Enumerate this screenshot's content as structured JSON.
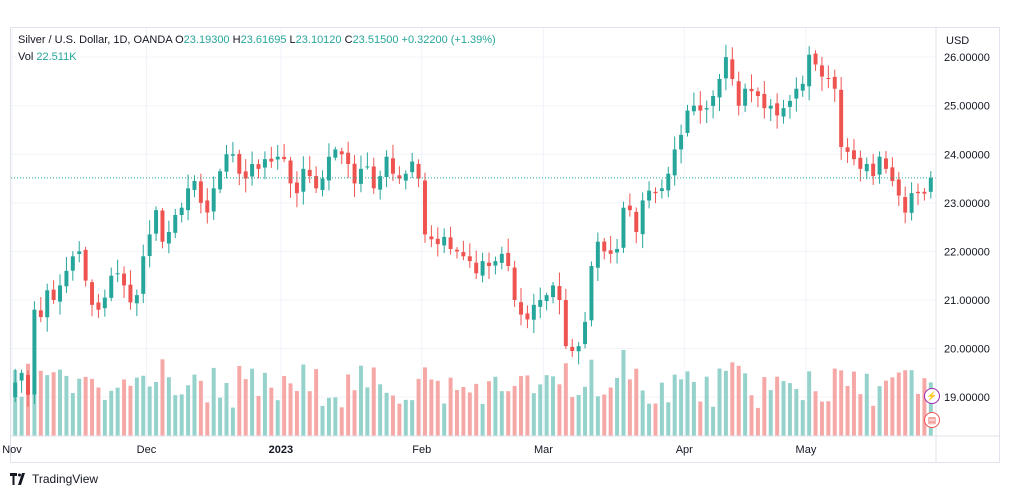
{
  "legend": {
    "symbol": "Silver / U.S. Dollar, 1D, OANDA",
    "o_label": "O",
    "o": "23.19300",
    "h_label": "H",
    "h": "23.61695",
    "l_label": "L",
    "l": "23.10120",
    "c_label": "C",
    "c": "23.51500",
    "change": "+0.32200 (+1.39%)",
    "vol_label": "Vol",
    "vol": "22.511K"
  },
  "footer": {
    "brand": "TradingView"
  },
  "colors": {
    "up": "#26a69a",
    "down": "#ef5350",
    "vol_up": "#94d2cb",
    "vol_down": "#f6a8a6",
    "grid": "#f0f3fa",
    "last_line": "#26a69a"
  },
  "chart_data": {
    "type": "candlestick",
    "currency": "USD",
    "ylim": [
      18.2,
      26.6
    ],
    "y_ticks": [
      "26.00000",
      "25.00000",
      "24.00000",
      "23.00000",
      "22.00000",
      "21.00000",
      "20.00000",
      "19.00000"
    ],
    "y_tick_values": [
      26,
      25,
      24,
      23,
      22,
      21,
      20,
      19
    ],
    "x_ticks": [
      {
        "label": "Nov",
        "index": 0
      },
      {
        "label": "Dec",
        "index": 21
      },
      {
        "label": "2023",
        "index": 42
      },
      {
        "label": "Feb",
        "index": 64
      },
      {
        "label": "Mar",
        "index": 83
      },
      {
        "label": "Apr",
        "index": 105
      },
      {
        "label": "May",
        "index": 124
      }
    ],
    "last_price": 23.515,
    "closes": [
      19.3,
      19.5,
      19.05,
      20.8,
      20.65,
      21.2,
      21.0,
      21.3,
      21.6,
      21.9,
      22.0,
      21.4,
      20.9,
      20.8,
      21.05,
      21.5,
      21.55,
      21.3,
      20.95,
      21.1,
      21.9,
      22.35,
      22.85,
      22.2,
      22.4,
      22.75,
      22.9,
      23.3,
      23.45,
      23.0,
      22.8,
      23.3,
      23.65,
      24.0,
      24.0,
      23.6,
      23.5,
      23.8,
      23.7,
      23.9,
      23.85,
      23.95,
      23.9,
      23.4,
      23.2,
      23.7,
      23.55,
      23.3,
      23.5,
      23.95,
      24.1,
      24.0,
      23.8,
      23.4,
      23.7,
      23.75,
      23.3,
      23.55,
      23.95,
      23.6,
      23.5,
      23.6,
      23.85,
      23.5,
      22.35,
      22.25,
      22.15,
      22.3,
      22.05,
      22.0,
      21.9,
      21.8,
      21.55,
      21.8,
      21.7,
      21.8,
      21.95,
      21.7,
      21.0,
      20.7,
      20.6,
      20.9,
      21.0,
      21.1,
      21.3,
      21.0,
      20.05,
      19.95,
      20.05,
      20.55,
      21.7,
      22.2,
      22.0,
      21.95,
      22.05,
      22.9,
      22.85,
      22.4,
      23.05,
      23.25,
      23.2,
      23.3,
      23.6,
      24.1,
      24.4,
      24.9,
      25.0,
      24.9,
      24.95,
      25.2,
      25.55,
      26.0,
      25.55,
      25.0,
      25.35,
      25.3,
      25.2,
      24.95,
      25.0,
      24.8,
      24.95,
      25.1,
      25.35,
      25.45,
      26.05,
      25.85,
      25.6,
      25.55,
      25.35,
      24.15,
      24.05,
      23.9,
      23.7,
      23.8,
      23.55,
      23.95,
      23.7,
      23.45,
      23.15,
      22.8,
      23.2,
      23.2,
      23.19,
      23.515
    ]
  }
}
